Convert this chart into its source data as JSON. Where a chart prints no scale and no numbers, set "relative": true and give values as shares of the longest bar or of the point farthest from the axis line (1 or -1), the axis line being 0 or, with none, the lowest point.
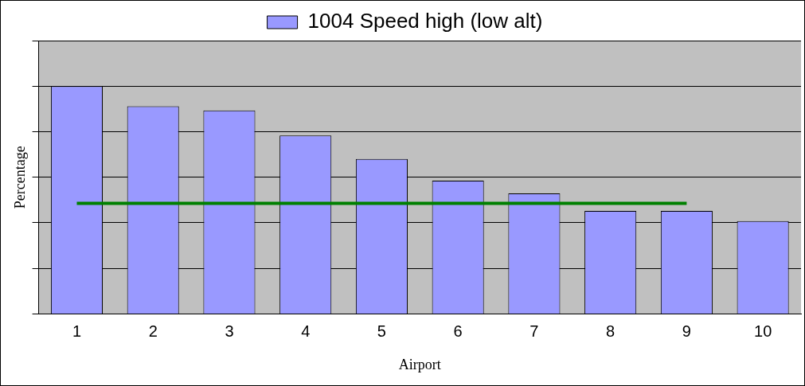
{
  "chart_data": {
    "type": "bar",
    "xlabel": "Airport",
    "ylabel": "Percentage",
    "relative": true,
    "grid": "y",
    "legend": "top",
    "categories": [
      "1",
      "2",
      "3",
      "4",
      "5",
      "6",
      "7",
      "8",
      "9",
      "10"
    ],
    "series": [
      {
        "name": "1004 Speed high (low alt)",
        "color": "#9999ff",
        "values": [
          1,
          0.912,
          0.893,
          0.783,
          0.68,
          0.585,
          0.529,
          0.452,
          0.452,
          0.408
        ]
      },
      {
        "type": "line",
        "color": "#008000",
        "marker": "none",
        "values": [
          0.485,
          0.485,
          0.485,
          0.485,
          0.485,
          0.485,
          0.485,
          0.485,
          0.485,
          null
        ]
      }
    ]
  }
}
